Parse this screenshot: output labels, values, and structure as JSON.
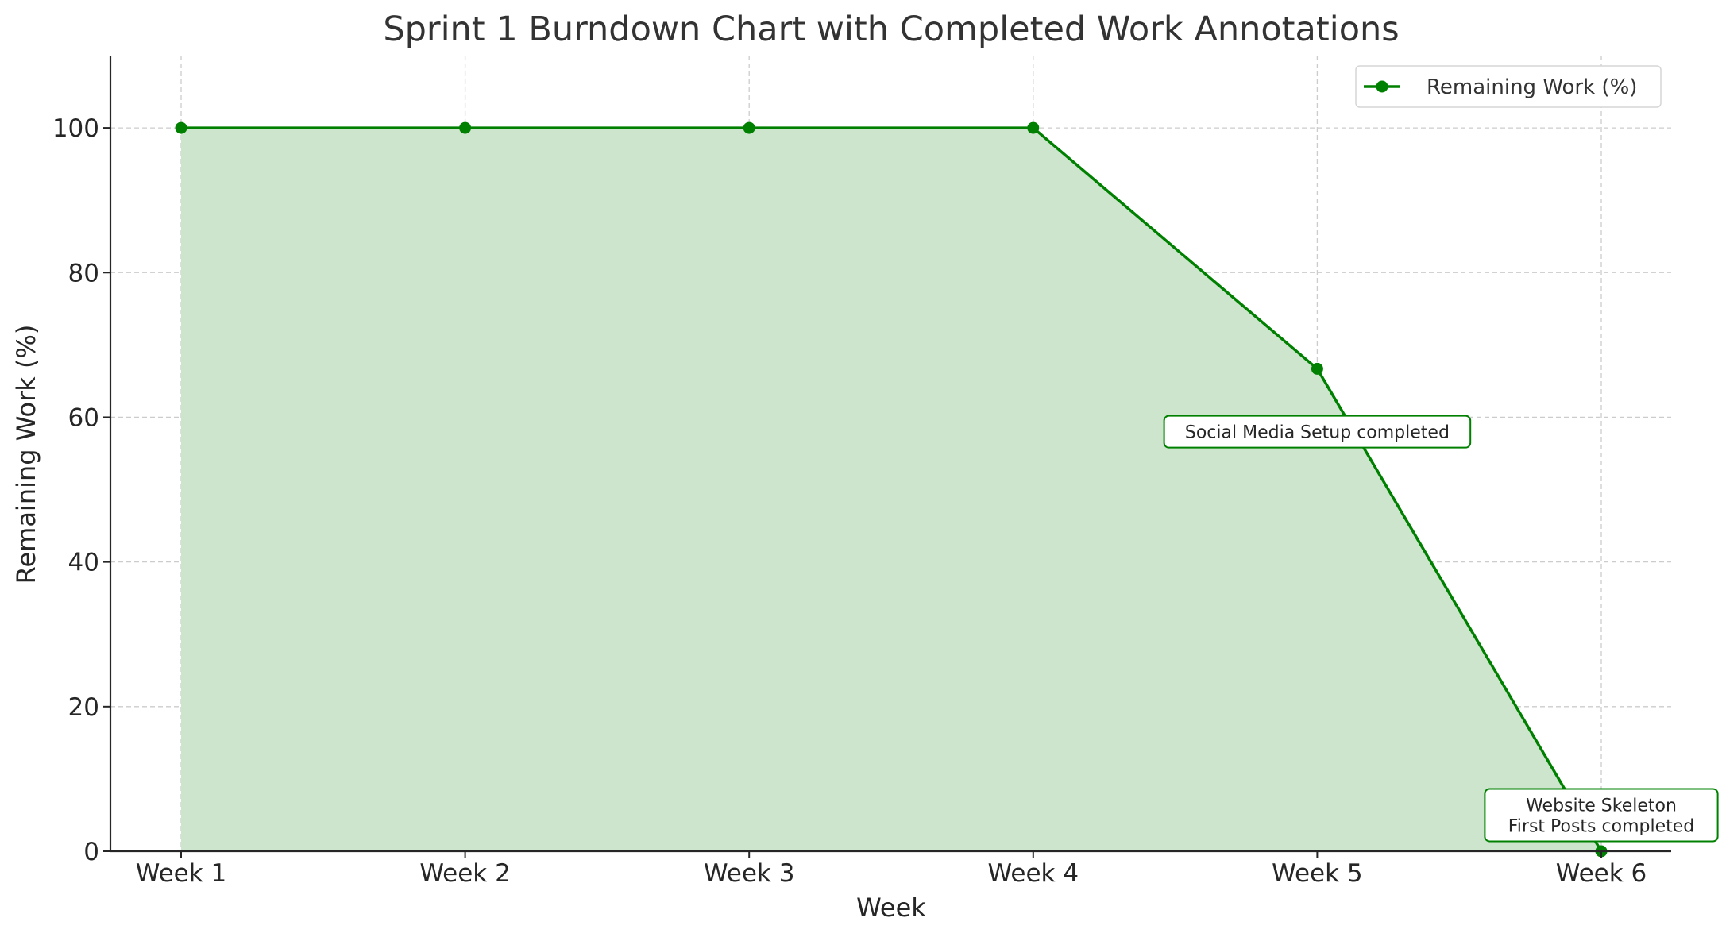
{
  "chart_data": {
    "type": "line",
    "title": "Sprint 1 Burndown Chart with Completed Work Annotations",
    "xlabel": "Week",
    "ylabel": "Remaining Work (%)",
    "categories": [
      "Week 1",
      "Week 2",
      "Week 3",
      "Week 4",
      "Week 5",
      "Week 6"
    ],
    "series": [
      {
        "name": "Remaining Work (%)",
        "values": [
          100,
          100,
          100,
          100,
          66.7,
          0
        ],
        "color": "#008000",
        "fill": "#cde5cd"
      }
    ],
    "ylim": [
      0,
      110
    ],
    "yticks": [
      0,
      20,
      40,
      60,
      80,
      100
    ],
    "grid": true,
    "legend": "top-right",
    "annotations": [
      {
        "category": "Week 5",
        "y": 58,
        "lines": [
          "Social Media Setup completed"
        ]
      },
      {
        "category": "Week 6",
        "y": 5,
        "lines": [
          "Website Skeleton",
          "First Posts completed"
        ]
      }
    ]
  }
}
